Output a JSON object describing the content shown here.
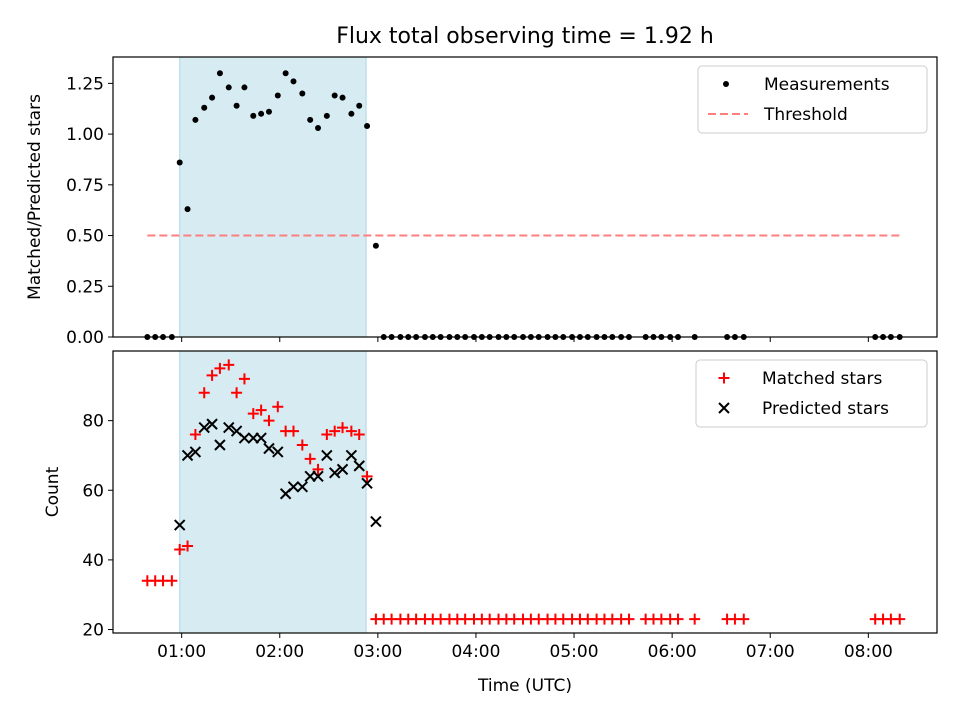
{
  "title": "Flux total observing time = 1.92 h",
  "colors": {
    "measurement": "#000000",
    "threshold": "#ff7f7f",
    "matched": "#ff0000",
    "predicted": "#000000",
    "span": "#add8e6"
  },
  "chart_data": [
    {
      "type": "scatter",
      "name": "ratio-panel",
      "ylabel": "Matched/Predicted stars",
      "xlabel": "",
      "xlim": [
        0.3,
        8.7
      ],
      "ylim": [
        0,
        1.38
      ],
      "xticks": [
        1,
        2,
        3,
        4,
        5,
        6,
        7,
        8
      ],
      "xtick_labels": [
        "01:00",
        "02:00",
        "03:00",
        "04:00",
        "05:00",
        "06:00",
        "07:00",
        "08:00"
      ],
      "yticks": [
        0,
        0.25,
        0.5,
        0.75,
        1.0,
        1.25
      ],
      "ytick_labels": [
        "0.00",
        "0.25",
        "0.50",
        "0.75",
        "1.00",
        "1.25"
      ],
      "shaded_span": [
        0.98,
        2.88
      ],
      "threshold": {
        "name": "Threshold",
        "y": 0.5,
        "x_range": [
          0.65,
          8.32
        ]
      },
      "legend": {
        "position": "upper right",
        "entries": [
          "Measurements",
          "Threshold"
        ]
      },
      "series": [
        {
          "name": "Measurements",
          "x": [
            0.65,
            0.73,
            0.81,
            0.9,
            0.98,
            1.06,
            1.14,
            1.23,
            1.31,
            1.39,
            1.48,
            1.56,
            1.64,
            1.73,
            1.81,
            1.89,
            1.98,
            2.06,
            2.14,
            2.23,
            2.31,
            2.39,
            2.48,
            2.56,
            2.64,
            2.73,
            2.81,
            2.89,
            2.98,
            3.06,
            3.14,
            3.23,
            3.31,
            3.39,
            3.48,
            3.56,
            3.64,
            3.73,
            3.81,
            3.89,
            3.98,
            4.06,
            4.14,
            4.23,
            4.31,
            4.39,
            4.48,
            4.56,
            4.64,
            4.73,
            4.81,
            4.89,
            4.98,
            5.06,
            5.14,
            5.23,
            5.31,
            5.39,
            5.48,
            5.56,
            5.73,
            5.81,
            5.89,
            5.98,
            6.06,
            6.23,
            6.56,
            6.64,
            6.73,
            8.07,
            8.15,
            8.23,
            8.32
          ],
          "y": [
            0,
            0,
            0,
            0,
            0.86,
            0.63,
            1.07,
            1.13,
            1.18,
            1.3,
            1.23,
            1.14,
            1.23,
            1.09,
            1.1,
            1.11,
            1.19,
            1.3,
            1.26,
            1.2,
            1.07,
            1.03,
            1.09,
            1.19,
            1.18,
            1.1,
            1.14,
            1.04,
            0.45,
            0,
            0,
            0,
            0,
            0,
            0,
            0,
            0,
            0,
            0,
            0,
            0,
            0,
            0,
            0,
            0,
            0,
            0,
            0,
            0,
            0,
            0,
            0,
            0,
            0,
            0,
            0,
            0,
            0,
            0,
            0,
            0,
            0,
            0,
            0,
            0,
            0,
            0,
            0,
            0,
            0,
            0,
            0,
            0
          ]
        }
      ]
    },
    {
      "type": "scatter",
      "name": "count-panel",
      "ylabel": "Count",
      "xlabel": "Time (UTC)",
      "xlim": [
        0.3,
        8.7
      ],
      "ylim": [
        19,
        100
      ],
      "xticks": [
        1,
        2,
        3,
        4,
        5,
        6,
        7,
        8
      ],
      "xtick_labels": [
        "01:00",
        "02:00",
        "03:00",
        "04:00",
        "05:00",
        "06:00",
        "07:00",
        "08:00"
      ],
      "yticks": [
        20,
        40,
        60,
        80
      ],
      "ytick_labels": [
        "20",
        "40",
        "60",
        "80"
      ],
      "shaded_span": [
        0.98,
        2.88
      ],
      "legend": {
        "position": "upper right",
        "entries": [
          "Matched stars",
          "Predicted stars"
        ]
      },
      "series": [
        {
          "name": "Matched stars",
          "marker": "plus",
          "x": [
            0.65,
            0.73,
            0.81,
            0.9,
            0.98,
            1.06,
            1.14,
            1.23,
            1.31,
            1.39,
            1.48,
            1.56,
            1.64,
            1.73,
            1.81,
            1.89,
            1.98,
            2.06,
            2.14,
            2.23,
            2.31,
            2.39,
            2.48,
            2.56,
            2.64,
            2.73,
            2.81,
            2.89,
            2.98,
            3.06,
            3.14,
            3.23,
            3.31,
            3.39,
            3.48,
            3.56,
            3.64,
            3.73,
            3.81,
            3.89,
            3.98,
            4.06,
            4.14,
            4.23,
            4.31,
            4.39,
            4.48,
            4.56,
            4.64,
            4.73,
            4.81,
            4.89,
            4.98,
            5.06,
            5.14,
            5.23,
            5.31,
            5.39,
            5.48,
            5.56,
            5.73,
            5.81,
            5.89,
            5.98,
            6.06,
            6.23,
            6.56,
            6.64,
            6.73,
            8.07,
            8.15,
            8.23,
            8.32
          ],
          "y": [
            34,
            34,
            34,
            34,
            43,
            44,
            76,
            88,
            93,
            95,
            96,
            88,
            92,
            82,
            83,
            80,
            84,
            77,
            77,
            73,
            69,
            66,
            76,
            77,
            78,
            77,
            76,
            64,
            23,
            23,
            23,
            23,
            23,
            23,
            23,
            23,
            23,
            23,
            23,
            23,
            23,
            23,
            23,
            23,
            23,
            23,
            23,
            23,
            23,
            23,
            23,
            23,
            23,
            23,
            23,
            23,
            23,
            23,
            23,
            23,
            23,
            23,
            23,
            23,
            23,
            23,
            23,
            23,
            23,
            23,
            23,
            23,
            23
          ]
        },
        {
          "name": "Predicted stars",
          "marker": "x",
          "x": [
            0.98,
            1.06,
            1.14,
            1.23,
            1.31,
            1.39,
            1.48,
            1.56,
            1.64,
            1.73,
            1.81,
            1.89,
            1.98,
            2.06,
            2.14,
            2.23,
            2.31,
            2.39,
            2.48,
            2.56,
            2.64,
            2.73,
            2.81,
            2.89,
            2.98
          ],
          "y": [
            50,
            70,
            71,
            78,
            79,
            73,
            78,
            77,
            75,
            75,
            75,
            72,
            71,
            59,
            61,
            61,
            64,
            64,
            70,
            65,
            66,
            70,
            67,
            62,
            51
          ]
        }
      ]
    }
  ]
}
